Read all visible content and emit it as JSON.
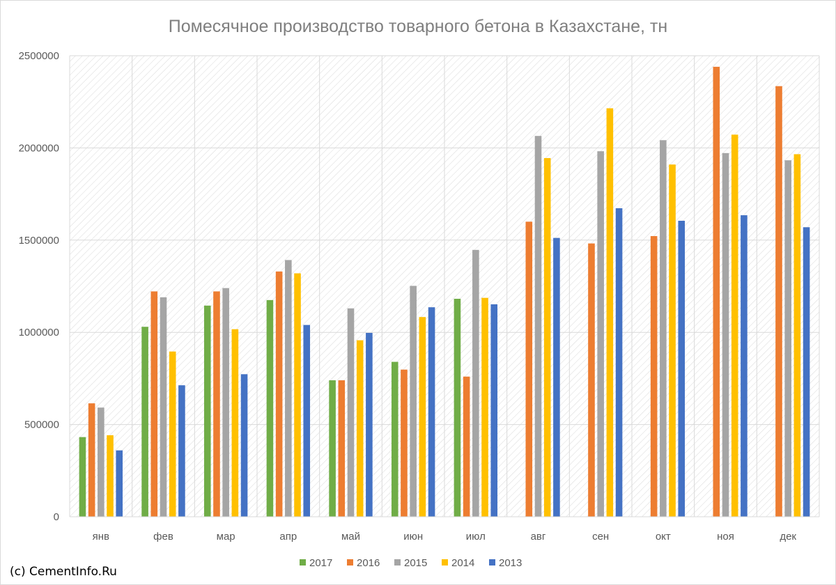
{
  "chart_data": {
    "type": "bar",
    "title": "Помесячное производство товарного бетона в Казахстане, тн",
    "xlabel": "",
    "ylabel": "",
    "ylim": [
      0,
      2500000
    ],
    "yticks": [
      0,
      500000,
      1000000,
      1500000,
      2000000,
      2500000
    ],
    "grid": true,
    "legend_position": "bottom",
    "categories": [
      "янв",
      "фев",
      "мар",
      "апр",
      "май",
      "июн",
      "июл",
      "авг",
      "сен",
      "окт",
      "ноя",
      "дек"
    ],
    "series": [
      {
        "name": "2017",
        "color": "#70ad47",
        "values": [
          432000,
          1030000,
          1145000,
          1175000,
          740000,
          840000,
          1182000,
          null,
          null,
          null,
          null,
          null
        ]
      },
      {
        "name": "2016",
        "color": "#ed7d31",
        "values": [
          615000,
          1222000,
          1222000,
          1330000,
          740000,
          798000,
          760000,
          1600000,
          1482000,
          1522000,
          2440000,
          2335000
        ]
      },
      {
        "name": "2015",
        "color": "#a5a5a5",
        "values": [
          592000,
          1190000,
          1240000,
          1392000,
          1130000,
          1252000,
          1447000,
          2065000,
          1982000,
          2042000,
          1972000,
          1933000
        ]
      },
      {
        "name": "2014",
        "color": "#ffc000",
        "values": [
          442000,
          896000,
          1017000,
          1320000,
          957000,
          1083000,
          1187000,
          1945000,
          2215000,
          1910000,
          2072000,
          1966000
        ]
      },
      {
        "name": "2013",
        "color": "#4472c4",
        "values": [
          360000,
          713000,
          773000,
          1040000,
          997000,
          1136000,
          1152000,
          1512000,
          1673000,
          1605000,
          1635000,
          1570000
        ]
      }
    ]
  },
  "copyright": "(c) CementInfo.Ru"
}
